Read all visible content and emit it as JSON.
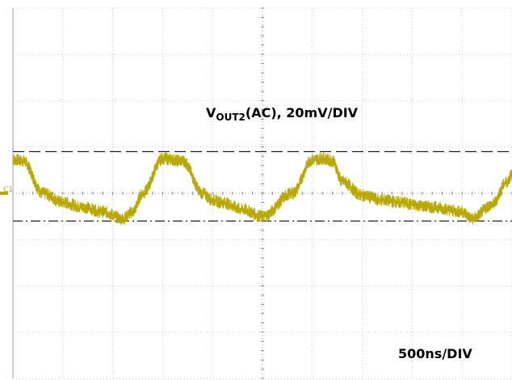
{
  "chart_data": {
    "type": "line",
    "title": "",
    "xlabel": "",
    "ylabel": "",
    "grid": true,
    "divisions": {
      "x": 10,
      "y": 8
    },
    "x_scale_label": "500ns/DIV",
    "y_scale_label": {
      "prefix": "V",
      "subscript": "OUT2",
      "suffix": "(AC), 20mV/DIV"
    },
    "channel_marker": "C1",
    "units": {
      "x": "ns",
      "y": "mV"
    },
    "xlim": [
      0,
      5000
    ],
    "ylim": [
      -80,
      80
    ],
    "reference_lines": [
      {
        "style": "dashed",
        "y": 18
      },
      {
        "style": "dash-dot",
        "y": -12
      }
    ],
    "series": [
      {
        "color": "#b8a800",
        "x": [
          0,
          100,
          300,
          500,
          700,
          900,
          1100,
          1200,
          1300,
          1500,
          1700,
          1900,
          2000,
          2100,
          2300,
          2500,
          2800,
          3000,
          3100,
          3200,
          3300,
          3500,
          3700,
          3900,
          4000,
          4200,
          4500,
          4600,
          4800,
          4950,
          5000
        ],
        "y": [
          14.5,
          14,
          0,
          -4,
          -6,
          -8,
          -11,
          -8,
          0,
          15,
          14,
          0,
          -3,
          -4,
          -7,
          -10,
          0,
          14.5,
          15,
          14,
          5,
          -1,
          -3,
          -4,
          -5,
          -6,
          -8,
          -11,
          -5,
          5,
          8
        ]
      }
    ]
  }
}
